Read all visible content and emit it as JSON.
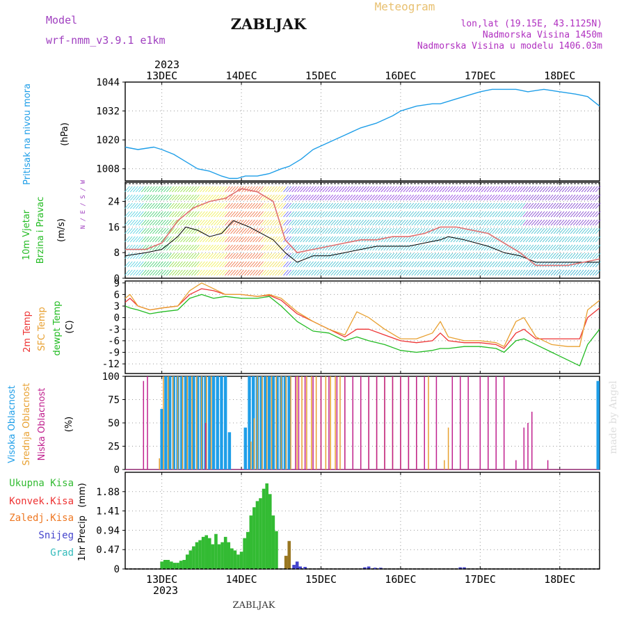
{
  "header": {
    "model_label": "Model",
    "model_name": "wrf-nmm_v3.9.1  e1km",
    "station": "ZABLJAK",
    "product": "Meteogram",
    "coords": "lon,lat (19.15E, 43.1125N)",
    "altitude": "Nadmorska Visina 1450m",
    "model_altitude": "Nadmorska Visina u modelu 1406.03m"
  },
  "footer": {
    "station": "ZABLJAK",
    "credit": "made by Angel"
  },
  "colors": {
    "pressure": "#1e9ee8",
    "temp_2m": "#ee3333",
    "temp_sfc": "#e8a030",
    "dewpoint": "#22bb22",
    "cloud_high": "#1e9ee8",
    "cloud_mid": "#e8a030",
    "cloud_low": "#c0208e",
    "precip_total": "#33bb33",
    "precip_conv": "#ee3333",
    "precip_frz": "#ee7722",
    "precip_snow": "#4444cc",
    "precip_hail": "#33bbbb",
    "gust": "#e07070",
    "wind_speed": "#000000",
    "model_label": "#a040c0",
    "product_label": "#e8c070",
    "meta_text": "#b030c0"
  },
  "chart_data": [
    {
      "type": "line",
      "panel": "pressure",
      "ylabel": "Pritisak na nivou mora",
      "unit": "(hPa)",
      "x_ticks": [
        "13DEC",
        "14DEC",
        "15DEC",
        "16DEC",
        "17DEC",
        "18DEC"
      ],
      "year": "2023",
      "x_range_days": [
        12.54,
        18.5
      ],
      "ylim": [
        1003,
        1044
      ],
      "yticks": [
        1008,
        1020,
        1032,
        1044
      ],
      "grid": true,
      "series": [
        {
          "x": [
            12.54,
            12.7,
            12.9,
            13.0,
            13.15,
            13.3,
            13.45,
            13.6,
            13.75,
            13.85,
            13.95,
            14.05,
            14.2,
            14.35,
            14.5,
            14.6,
            14.75,
            14.9,
            15.1,
            15.3,
            15.5,
            15.7,
            15.9,
            16.0,
            16.2,
            16.4,
            16.5,
            16.7,
            16.9,
            17.0,
            17.15,
            17.3,
            17.45,
            17.6,
            17.8,
            18.0,
            18.2,
            18.35,
            18.5
          ],
          "y": [
            1017,
            1016,
            1017,
            1016,
            1014,
            1011,
            1008,
            1007,
            1005,
            1004,
            1004,
            1005,
            1005,
            1006,
            1008,
            1009,
            1012,
            1016,
            1019,
            1022,
            1025,
            1027,
            1030,
            1032,
            1034,
            1035,
            1035,
            1037,
            1039,
            1040,
            1041,
            1041,
            1041,
            1040,
            1041,
            1040,
            1039,
            1038,
            1034
          ]
        }
      ]
    },
    {
      "type": "line",
      "panel": "wind",
      "ylabel": [
        "10m Vjetar",
        "Brzina i Pravac"
      ],
      "unit": "(m/s)",
      "compass": "N / E / S / W",
      "ylim": [
        0,
        30
      ],
      "yticks": [
        0,
        8,
        16,
        24
      ],
      "grid": true,
      "series": [
        {
          "name": "speed",
          "x": [
            12.54,
            12.8,
            13.0,
            13.2,
            13.3,
            13.45,
            13.6,
            13.75,
            13.9,
            14.0,
            14.1,
            14.25,
            14.4,
            14.55,
            14.7,
            14.9,
            15.1,
            15.3,
            15.5,
            15.7,
            15.9,
            16.1,
            16.3,
            16.5,
            16.6,
            16.8,
            16.95,
            17.1,
            17.3,
            17.5,
            17.7,
            17.9,
            18.1,
            18.3,
            18.5
          ],
          "y": [
            7,
            8,
            9,
            13,
            16,
            15,
            13,
            14,
            18,
            17,
            16,
            14,
            12,
            8,
            5,
            7,
            7,
            8,
            9,
            10,
            10,
            10,
            11,
            12,
            13,
            12,
            11,
            10,
            8,
            7,
            5,
            5,
            5,
            5,
            5
          ]
        },
        {
          "name": "gust",
          "x": [
            12.54,
            12.8,
            13.0,
            13.2,
            13.4,
            13.6,
            13.8,
            14.0,
            14.2,
            14.4,
            14.55,
            14.7,
            14.9,
            15.1,
            15.3,
            15.5,
            15.7,
            15.9,
            16.1,
            16.3,
            16.5,
            16.7,
            16.9,
            17.1,
            17.3,
            17.5,
            17.7,
            17.9,
            18.1,
            18.3,
            18.5
          ],
          "y": [
            9,
            9,
            11,
            18,
            22,
            24,
            25,
            28,
            27,
            24,
            12,
            8,
            9,
            10,
            11,
            12,
            12,
            13,
            13,
            14,
            16,
            16,
            15,
            14,
            11,
            8,
            4,
            4,
            4,
            5,
            6
          ]
        }
      ]
    },
    {
      "type": "line",
      "panel": "temperature",
      "ylabel": [
        "2m Temp",
        "SFC Temp",
        "dewpt Temp"
      ],
      "unit": "(C)",
      "ylim": [
        -14.5,
        9.5
      ],
      "yticks": [
        -12,
        -9,
        -6,
        -3,
        0,
        3,
        6,
        9
      ],
      "grid": true,
      "series": [
        {
          "name": "2m Temp",
          "x": [
            12.54,
            12.6,
            12.7,
            12.85,
            13.0,
            13.2,
            13.35,
            13.5,
            13.65,
            13.8,
            14.0,
            14.2,
            14.35,
            14.5,
            14.7,
            14.9,
            15.1,
            15.3,
            15.45,
            15.6,
            15.8,
            16.0,
            16.2,
            16.4,
            16.5,
            16.6,
            16.8,
            17.0,
            17.2,
            17.3,
            17.45,
            17.55,
            17.7,
            17.9,
            18.1,
            18.25,
            18.35,
            18.5
          ],
          "y": [
            4,
            5,
            3,
            2,
            2.5,
            3,
            6,
            7.5,
            7,
            6,
            6,
            5.5,
            5.8,
            4.5,
            1,
            -1,
            -3,
            -5,
            -3,
            -3,
            -4.5,
            -6,
            -6.5,
            -6,
            -4,
            -6,
            -6.5,
            -6.5,
            -7,
            -8,
            -4,
            -3,
            -5.5,
            -5.5,
            -5.5,
            -5.5,
            0,
            2.5
          ]
        },
        {
          "name": "SFC Temp",
          "x": [
            12.54,
            12.6,
            12.7,
            12.85,
            13.0,
            13.2,
            13.35,
            13.5,
            13.65,
            13.8,
            14.0,
            14.2,
            14.35,
            14.5,
            14.7,
            14.9,
            15.1,
            15.3,
            15.45,
            15.6,
            15.8,
            16.0,
            16.2,
            16.4,
            16.5,
            16.6,
            16.8,
            17.0,
            17.2,
            17.3,
            17.45,
            17.55,
            17.7,
            17.9,
            18.1,
            18.25,
            18.35,
            18.5
          ],
          "y": [
            5,
            6,
            3,
            2,
            2.5,
            3,
            7,
            9,
            7.5,
            6,
            6,
            5.5,
            6,
            5,
            1.5,
            -1,
            -3,
            -4.5,
            1.5,
            0,
            -3,
            -5.5,
            -5.5,
            -4,
            -1,
            -5,
            -6,
            -6,
            -6.5,
            -7.5,
            -1,
            0,
            -5,
            -7,
            -7.5,
            -7.5,
            2,
            4.5
          ]
        },
        {
          "name": "dewpt Temp",
          "x": [
            12.54,
            12.6,
            12.7,
            12.85,
            13.0,
            13.2,
            13.35,
            13.5,
            13.65,
            13.8,
            14.0,
            14.2,
            14.35,
            14.5,
            14.7,
            14.9,
            15.1,
            15.3,
            15.45,
            15.6,
            15.8,
            16.0,
            16.2,
            16.4,
            16.5,
            16.6,
            16.8,
            17.0,
            17.2,
            17.3,
            17.45,
            17.55,
            17.7,
            17.9,
            18.1,
            18.25,
            18.35,
            18.5
          ],
          "y": [
            3,
            2.5,
            2,
            1,
            1.5,
            2,
            5,
            6,
            5,
            5.5,
            5,
            5,
            5.5,
            3,
            -1,
            -3.5,
            -4,
            -6,
            -5,
            -6,
            -7,
            -8.5,
            -9,
            -8.5,
            -8,
            -8,
            -7.5,
            -7.5,
            -8,
            -9,
            -6,
            -5.5,
            -7,
            -9,
            -11,
            -12.5,
            -7,
            -3
          ]
        }
      ]
    },
    {
      "type": "bar",
      "panel": "clouds",
      "ylabel": [
        "Visoka Oblacnost",
        "Srednja Oblacnost",
        "Niska Oblacnost"
      ],
      "unit": "(%)",
      "ylim": [
        0,
        100
      ],
      "yticks": [
        0,
        25,
        50,
        75,
        100
      ],
      "grid": true,
      "series": [
        {
          "name": "Visoka Oblacnost",
          "x": [
            13.0,
            13.05,
            13.1,
            13.15,
            13.2,
            13.25,
            13.3,
            13.35,
            13.4,
            13.45,
            13.5,
            13.55,
            13.6,
            13.65,
            13.7,
            13.75,
            13.8,
            13.85,
            14.05,
            14.1,
            14.15,
            14.2,
            14.25,
            14.3,
            14.35,
            14.4,
            14.45,
            14.5,
            14.55,
            14.6,
            18.48
          ],
          "values": [
            65,
            100,
            100,
            100,
            100,
            100,
            100,
            100,
            100,
            100,
            100,
            100,
            100,
            100,
            100,
            100,
            100,
            40,
            45,
            100,
            100,
            100,
            100,
            100,
            100,
            100,
            100,
            100,
            100,
            100,
            95
          ]
        },
        {
          "name": "Srednja Oblacnost",
          "x": [
            12.97,
            13.02,
            13.08,
            13.14,
            13.2,
            13.26,
            13.32,
            13.38,
            13.44,
            13.5,
            13.56,
            13.62,
            14.12,
            14.16,
            14.2,
            14.26,
            14.32,
            14.38,
            14.44,
            14.5,
            14.56,
            14.62,
            14.7,
            14.76,
            14.82,
            14.88,
            14.94,
            15.0,
            15.06,
            15.12,
            15.18,
            15.24,
            15.3,
            15.4,
            15.5,
            15.6,
            15.7,
            15.8,
            15.9,
            16.0,
            16.1,
            16.2,
            16.3,
            16.35,
            16.55,
            16.6
          ],
          "values": [
            12,
            100,
            100,
            100,
            100,
            100,
            100,
            100,
            100,
            100,
            100,
            100,
            30,
            55,
            100,
            100,
            100,
            100,
            100,
            100,
            100,
            100,
            100,
            100,
            100,
            100,
            100,
            100,
            100,
            100,
            100,
            100,
            100,
            100,
            100,
            100,
            100,
            100,
            100,
            100,
            100,
            100,
            100,
            100,
            10,
            45
          ]
        },
        {
          "name": "Niska Oblacnost",
          "x": [
            12.77,
            12.82,
            13.55,
            14.68,
            14.72,
            14.8,
            14.9,
            15.0,
            15.1,
            15.2,
            15.3,
            15.4,
            15.5,
            15.6,
            15.7,
            15.8,
            15.9,
            16.0,
            16.1,
            16.2,
            16.3,
            16.45,
            16.65,
            16.75,
            16.85,
            17.0,
            17.1,
            17.2,
            17.3,
            17.45,
            17.55,
            17.6,
            17.65,
            17.85
          ],
          "values": [
            95,
            100,
            50,
            100,
            100,
            100,
            100,
            100,
            100,
            100,
            100,
            100,
            100,
            100,
            100,
            100,
            100,
            100,
            100,
            100,
            100,
            100,
            100,
            100,
            100,
            100,
            100,
            100,
            100,
            10,
            45,
            50,
            62,
            10
          ]
        }
      ]
    },
    {
      "type": "bar",
      "panel": "precipitation",
      "ylabel": "1hr Precip",
      "unit": "(mm)",
      "legend": [
        "Ukupna Kisa",
        "Konvek.Kisa",
        "Zaledj.Kisa",
        "Snijeg",
        "Grad"
      ],
      "ylim": [
        0,
        2.35
      ],
      "yticks": [
        0,
        0.47,
        0.94,
        1.41,
        1.88
      ],
      "grid": true,
      "series": [
        {
          "name": "Ukupna Kisa",
          "x": [
            13.0,
            13.04,
            13.08,
            13.12,
            13.16,
            13.2,
            13.24,
            13.28,
            13.32,
            13.36,
            13.4,
            13.44,
            13.48,
            13.52,
            13.56,
            13.6,
            13.64,
            13.68,
            13.72,
            13.76,
            13.8,
            13.84,
            13.88,
            13.92,
            13.96,
            14.0,
            14.04,
            14.08,
            14.12,
            14.16,
            14.2,
            14.24,
            14.28,
            14.32,
            14.36,
            14.4,
            14.44
          ],
          "values": [
            0.18,
            0.22,
            0.22,
            0.18,
            0.15,
            0.15,
            0.2,
            0.22,
            0.35,
            0.45,
            0.55,
            0.65,
            0.7,
            0.78,
            0.82,
            0.75,
            0.6,
            0.85,
            0.6,
            0.65,
            0.78,
            0.65,
            0.5,
            0.45,
            0.35,
            0.42,
            0.75,
            0.9,
            1.3,
            1.5,
            1.65,
            1.72,
            1.95,
            2.08,
            1.82,
            1.3,
            0.92
          ]
        },
        {
          "name": "Zaledj.Kisa",
          "x": [
            14.56,
            14.6
          ],
          "values": [
            0.32,
            0.68
          ]
        },
        {
          "name": "Snijeg",
          "x": [
            14.66,
            14.7,
            14.74,
            14.8,
            15.55,
            15.6,
            15.68,
            15.75,
            16.75,
            16.8
          ],
          "values": [
            0.1,
            0.18,
            0.06,
            0.05,
            0.04,
            0.06,
            0.03,
            0.03,
            0.04,
            0.04
          ]
        }
      ]
    }
  ]
}
